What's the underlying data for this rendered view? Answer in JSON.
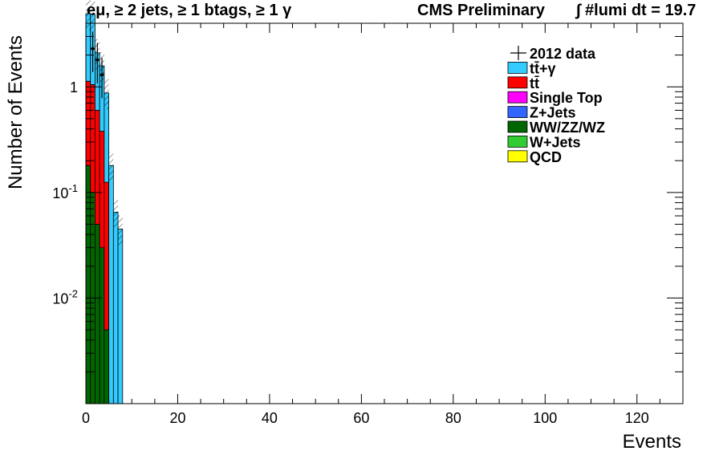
{
  "chart_data": {
    "type": "bar",
    "title_left": "eμ, ≥ 2 jets, ≥ 1 btags, ≥ 1 γ",
    "title_center": "CMS Preliminary",
    "title_right": "∫ #lumi dt = 19.7",
    "xlabel": "Events",
    "ylabel": "Number of Events",
    "xlim": [
      0,
      130
    ],
    "ylim": [
      0.001,
      4
    ],
    "yscale": "log",
    "x_ticks": [
      "0",
      "20",
      "40",
      "60",
      "80",
      "100",
      "120"
    ],
    "y_ticks": [
      {
        "value": 1,
        "label": "1"
      },
      {
        "value": 0.1,
        "label": "10-1"
      },
      {
        "value": 0.01,
        "label": "10-2"
      }
    ],
    "bin_width": 1,
    "bin_edges_start": 0,
    "stack": [
      {
        "name": "WW/ZZ/WZ",
        "color": "#006600",
        "values": [
          0.18,
          0.1,
          0.05,
          0.03,
          0.005,
          0,
          0,
          0
        ]
      },
      {
        "name": "tt̄",
        "color": "#ff0000",
        "values": [
          0.95,
          0.95,
          0.55,
          0.35,
          0.12,
          0,
          0,
          0
        ]
      },
      {
        "name": "tt̄+γ",
        "color": "#33ccff",
        "values": [
          3.8,
          3.8,
          1.5,
          1.2,
          0.75,
          0.18,
          0.065,
          0.045
        ]
      }
    ],
    "data_points": [
      {
        "x": 1.5,
        "y": 2.3
      },
      {
        "x": 2.5,
        "y": 1.8
      },
      {
        "x": 3.5,
        "y": 1.3
      }
    ],
    "legend": [
      {
        "label": "2012 data",
        "color": "#000000",
        "kind": "data"
      },
      {
        "label": "tt̄+γ",
        "color": "#33ccff",
        "kind": "box"
      },
      {
        "label": "tt̄",
        "color": "#ff0000",
        "kind": "box"
      },
      {
        "label": "Single Top",
        "color": "#ff00ff",
        "kind": "box"
      },
      {
        "label": "Z+Jets",
        "color": "#3366ff",
        "kind": "box"
      },
      {
        "label": "WW/ZZ/WZ",
        "color": "#006600",
        "kind": "box"
      },
      {
        "label": "W+Jets",
        "color": "#33cc33",
        "kind": "box"
      },
      {
        "label": "QCD",
        "color": "#ffff00",
        "kind": "box"
      }
    ],
    "legend_position": "top-right",
    "grid": false
  }
}
